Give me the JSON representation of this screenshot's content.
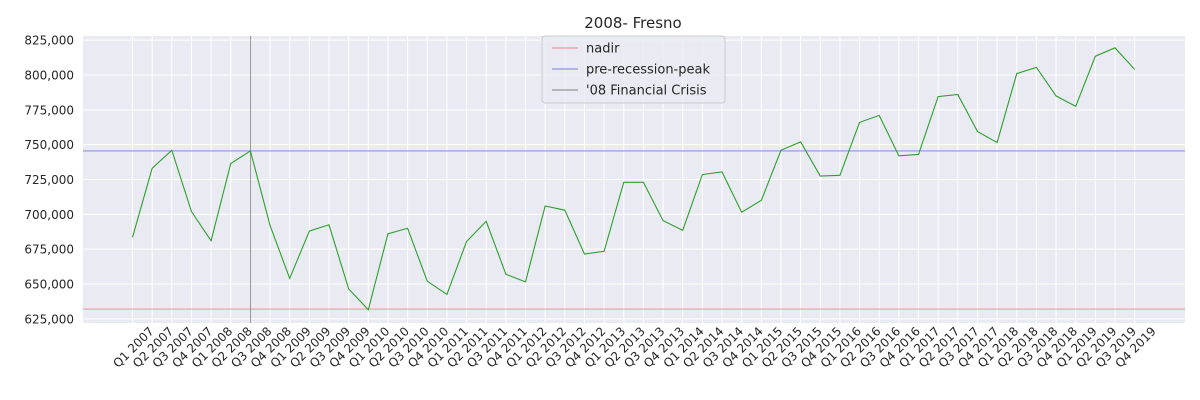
{
  "chart_data": {
    "type": "line",
    "title": "2008- Fresno",
    "xlabel": "",
    "ylabel": "",
    "ylim": [
      622000,
      828000
    ],
    "yticks": [
      625000,
      650000,
      675000,
      700000,
      725000,
      750000,
      775000,
      800000,
      825000
    ],
    "ytick_labels": [
      "625,000",
      "650,000",
      "675,000",
      "700,000",
      "725,000",
      "750,000",
      "775,000",
      "800,000",
      "825,000"
    ],
    "grid": true,
    "legend": "top-center",
    "categories": [
      "Q1 2007",
      "Q2 2007",
      "Q3 2007",
      "Q4 2007",
      "Q1 2008",
      "Q2 2008",
      "Q3 2008",
      "Q4 2008",
      "Q1 2009",
      "Q2 2009",
      "Q3 2009",
      "Q4 2009",
      "Q1 2010",
      "Q2 2010",
      "Q3 2010",
      "Q4 2010",
      "Q1 2011",
      "Q2 2011",
      "Q3 2011",
      "Q4 2011",
      "Q1 2012",
      "Q2 2012",
      "Q3 2012",
      "Q4 2012",
      "Q1 2013",
      "Q2 2013",
      "Q3 2013",
      "Q4 2013",
      "Q1 2014",
      "Q2 2014",
      "Q3 2014",
      "Q4 2014",
      "Q1 2015",
      "Q2 2015",
      "Q3 2015",
      "Q4 2015",
      "Q1 2016",
      "Q2 2016",
      "Q3 2016",
      "Q4 2016",
      "Q1 2017",
      "Q2 2017",
      "Q3 2017",
      "Q4 2017",
      "Q1 2018",
      "Q2 2018",
      "Q3 2018",
      "Q4 2018",
      "Q1 2019",
      "Q2 2019",
      "Q3 2019",
      "Q4 2019"
    ],
    "series": [
      {
        "values": [
          683500,
          733000,
          746000,
          702000,
          681000,
          736500,
          745500,
          692000,
          654000,
          688000,
          692500,
          646500,
          631500,
          686000,
          690000,
          652000,
          642500,
          680500,
          695000,
          657000,
          651500,
          706000,
          703000,
          671500,
          673500,
          723000,
          723000,
          695500,
          688500,
          728500,
          730500,
          701500,
          710000,
          746000,
          752000,
          727500,
          728000,
          766000,
          771000,
          742000,
          743000,
          784500,
          786000,
          759500,
          751500,
          801000,
          805500,
          785000,
          777500,
          813500,
          819500,
          804000
        ],
        "color": "#2ca02c"
      }
    ],
    "reference_lines": [
      {
        "name": "nadir",
        "orientation": "horizontal",
        "value": 632000,
        "color": "#e8888a"
      },
      {
        "name": "pre-recession-peak",
        "orientation": "horizontal",
        "value": 745500,
        "color": "#7a7ae0"
      },
      {
        "name": "'08 Financial Crisis",
        "orientation": "vertical",
        "category": "Q3 2008",
        "color": "#808080"
      }
    ]
  }
}
